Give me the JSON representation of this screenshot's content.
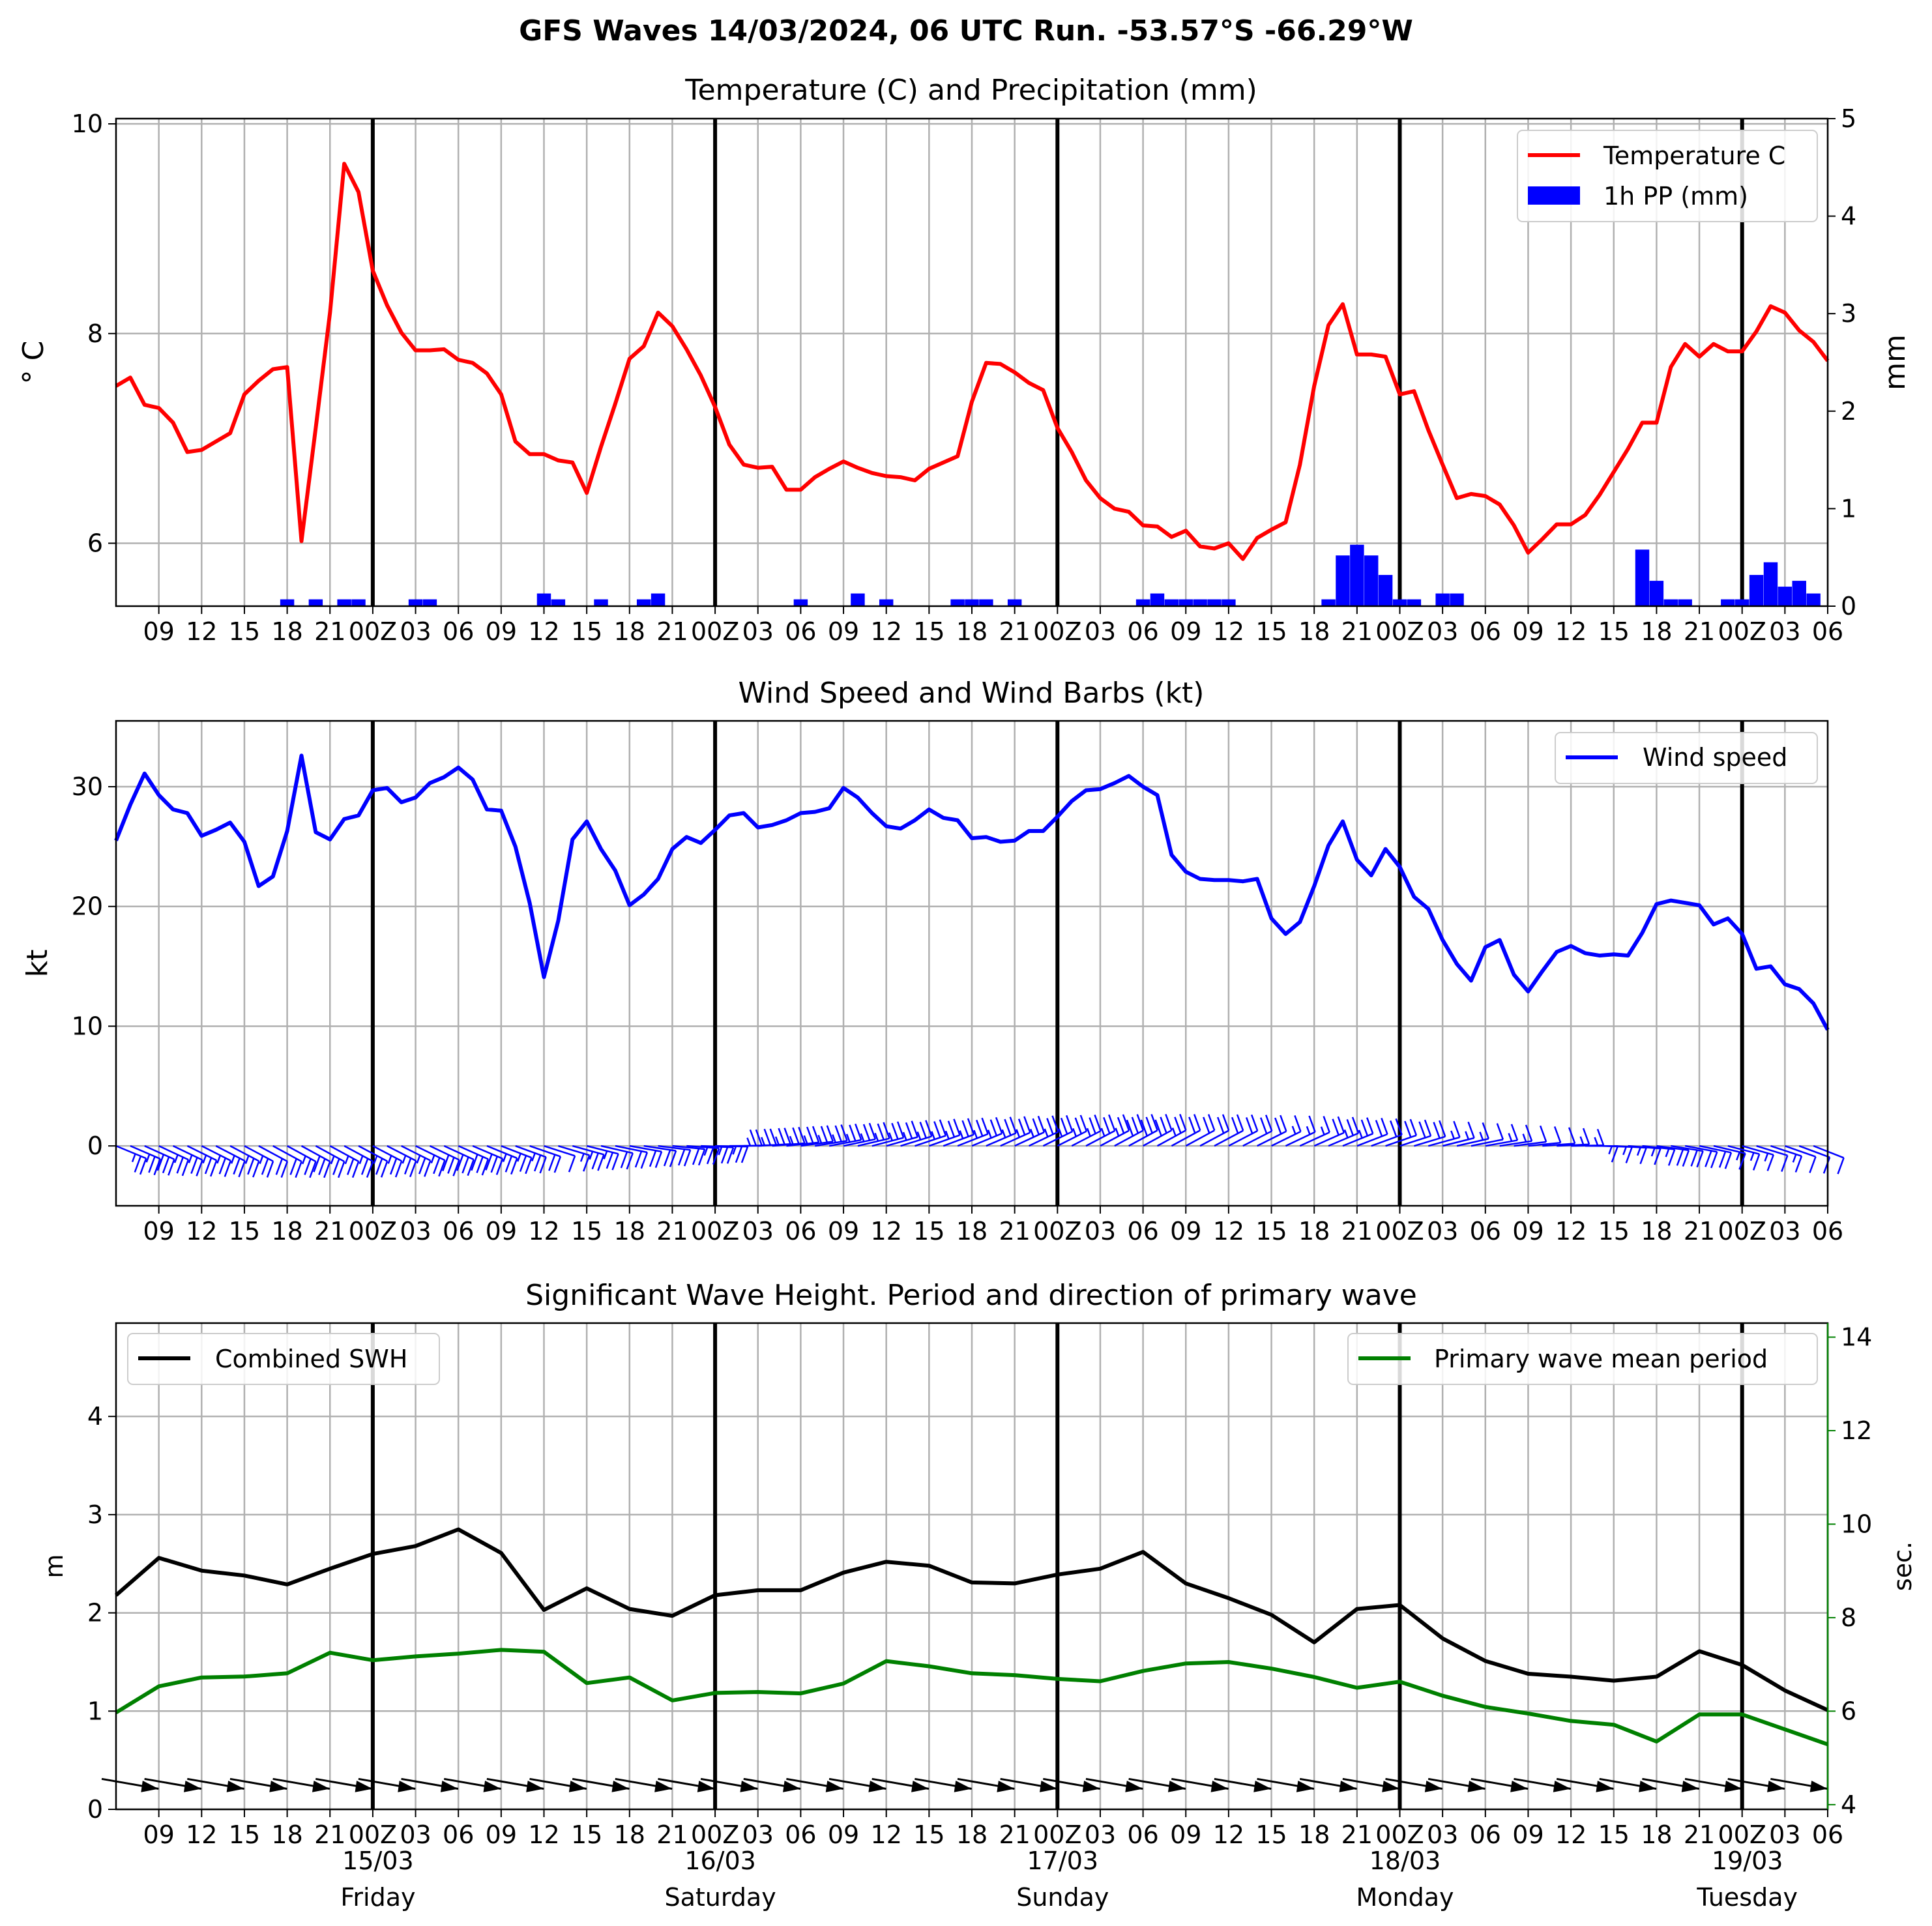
{
  "page": {
    "suptitle": "GFS Waves 14/03/2024, 06 UTC Run. -53.57°S -66.29°W"
  },
  "colors": {
    "temperature": "#ff0000",
    "precip": "#0000ff",
    "wind": "#0000ff",
    "swh": "#000000",
    "period": "#008000",
    "grid": "#b0b0b0",
    "day_line": "#000000"
  },
  "time_axis": {
    "tick_labels": [
      "09",
      "12",
      "15",
      "18",
      "21",
      "00Z",
      "03",
      "06",
      "09",
      "12",
      "15",
      "18",
      "21",
      "00Z",
      "03",
      "06",
      "09",
      "12",
      "15",
      "18",
      "21",
      "00Z",
      "03",
      "06",
      "09",
      "12",
      "15",
      "18",
      "21",
      "00Z",
      "03",
      "06",
      "09",
      "12",
      "15",
      "18",
      "21",
      "00Z",
      "03",
      "06"
    ],
    "day_labels": [
      {
        "date": "15/03",
        "day": "Friday"
      },
      {
        "date": "16/03",
        "day": "Saturday"
      },
      {
        "date": "17/03",
        "day": "Sunday"
      },
      {
        "date": "18/03",
        "day": "Monday"
      },
      {
        "date": "19/03",
        "day": "Tuesday"
      }
    ]
  },
  "chart_data": [
    {
      "type": "line",
      "title": "Temperature (C) and Precipitation (mm)",
      "x_units": "hours since 14/03 06Z",
      "xlim": [
        0,
        120
      ],
      "ylabel": "$^\\circ$C",
      "ylabel_display": "° C",
      "ylim": [
        5.4,
        10.05
      ],
      "yticks": [
        6,
        8,
        10
      ],
      "y2label": "mm",
      "y2lim": [
        0,
        5
      ],
      "y2ticks": [
        0,
        1,
        2,
        3,
        4,
        5
      ],
      "legend": {
        "position": "top-right",
        "entries": [
          "Temperature C",
          "1h PP (mm)"
        ]
      },
      "series": [
        {
          "name": "Temperature C",
          "kind": "line",
          "x": [
            0,
            1,
            2,
            3,
            4,
            5,
            6,
            7,
            8,
            9,
            10,
            11,
            12,
            13,
            14,
            15,
            16,
            17,
            18,
            19,
            20,
            21,
            22,
            23,
            24,
            25,
            26,
            27,
            28,
            29,
            30,
            31,
            32,
            33,
            34,
            35,
            36,
            37,
            38,
            39,
            40,
            41,
            42,
            43,
            44,
            45,
            46,
            47,
            48,
            49,
            50,
            51,
            52,
            53,
            54,
            55,
            56,
            57,
            58,
            59,
            60,
            61,
            62,
            63,
            64,
            65,
            66,
            67,
            68,
            69,
            70,
            71,
            72,
            73,
            74,
            75,
            76,
            77,
            78,
            79,
            80,
            81,
            82,
            83,
            84,
            85,
            86,
            87,
            88,
            89,
            90,
            91,
            92,
            93,
            94,
            95,
            96,
            97,
            98,
            99,
            100,
            101,
            102,
            103,
            104,
            105,
            106,
            107,
            108,
            109,
            110,
            111,
            112,
            113,
            114,
            115,
            116,
            117,
            118,
            119,
            120
          ],
          "values": [
            7.5,
            7.58,
            7.32,
            7.29,
            7.15,
            6.87,
            6.89,
            6.97,
            7.05,
            7.42,
            7.55,
            7.66,
            7.68,
            6.02,
            7.1,
            8.2,
            9.62,
            9.35,
            8.6,
            8.27,
            8.01,
            7.84,
            7.84,
            7.85,
            7.75,
            7.72,
            7.62,
            7.42,
            6.97,
            6.85,
            6.85,
            6.79,
            6.77,
            6.48,
            6.92,
            7.33,
            7.76,
            7.88,
            8.2,
            8.07,
            7.85,
            7.6,
            7.3,
            6.94,
            6.75,
            6.72,
            6.73,
            6.51,
            6.51,
            6.63,
            6.71,
            6.78,
            6.72,
            6.67,
            6.64,
            6.63,
            6.6,
            6.71,
            6.77,
            6.83,
            7.35,
            7.72,
            7.71,
            7.63,
            7.53,
            7.46,
            7.1,
            6.87,
            6.6,
            6.43,
            6.33,
            6.3,
            6.17,
            6.16,
            6.06,
            6.12,
            5.97,
            5.95,
            6.0,
            5.85,
            6.05,
            6.13,
            6.2,
            6.75,
            7.5,
            8.08,
            8.28,
            7.8,
            7.8,
            7.78,
            7.42,
            7.45,
            7.08,
            6.75,
            6.43,
            6.47,
            6.45,
            6.37,
            6.17,
            5.91,
            6.04,
            6.18,
            6.18,
            6.27,
            6.46,
            6.68,
            6.9,
            7.15,
            7.15,
            7.68,
            7.9,
            7.78,
            7.9,
            7.83,
            7.83,
            8.02,
            8.26,
            8.2,
            8.03,
            7.92,
            7.74
          ]
        },
        {
          "name": "1h PP (mm)",
          "kind": "bar",
          "x": [
            12,
            14,
            16,
            17,
            21,
            22,
            30,
            31,
            34,
            37,
            38,
            48,
            52,
            54,
            59,
            60,
            61,
            63,
            72,
            73,
            74,
            75,
            76,
            77,
            78,
            85,
            86,
            87,
            88,
            89,
            90,
            91,
            93,
            94,
            107,
            108,
            109,
            110,
            113,
            114,
            115,
            116,
            117,
            118,
            119
          ],
          "values": [
            0.07,
            0.07,
            0.07,
            0.07,
            0.07,
            0.07,
            0.13,
            0.07,
            0.07,
            0.07,
            0.13,
            0.07,
            0.13,
            0.07,
            0.07,
            0.07,
            0.07,
            0.07,
            0.07,
            0.13,
            0.07,
            0.07,
            0.07,
            0.07,
            0.07,
            0.07,
            0.52,
            0.63,
            0.52,
            0.32,
            0.07,
            0.07,
            0.13,
            0.13,
            0.58,
            0.26,
            0.07,
            0.07,
            0.07,
            0.07,
            0.32,
            0.45,
            0.2,
            0.26,
            0.13
          ]
        }
      ]
    },
    {
      "type": "line",
      "title": "Wind Speed and Wind Barbs (kt)",
      "x_units": "hours since 14/03 06Z",
      "xlim": [
        0,
        120
      ],
      "ylabel": "kt",
      "ylim": [
        -5,
        35.5
      ],
      "yticks": [
        0,
        10,
        20,
        30
      ],
      "legend": {
        "position": "top-right",
        "entries": [
          "Wind speed"
        ]
      },
      "series": [
        {
          "name": "Wind speed",
          "x": [
            0,
            1,
            2,
            3,
            4,
            5,
            6,
            7,
            8,
            9,
            10,
            11,
            12,
            13,
            14,
            15,
            16,
            17,
            18,
            19,
            20,
            21,
            22,
            23,
            24,
            25,
            26,
            27,
            28,
            29,
            30,
            31,
            32,
            33,
            34,
            35,
            36,
            37,
            38,
            39,
            40,
            41,
            42,
            43,
            44,
            45,
            46,
            47,
            48,
            49,
            50,
            51,
            52,
            53,
            54,
            55,
            56,
            57,
            58,
            59,
            60,
            61,
            62,
            63,
            64,
            65,
            66,
            67,
            68,
            69,
            70,
            71,
            72,
            73,
            74,
            75,
            76,
            77,
            78,
            79,
            80,
            81,
            82,
            83,
            84,
            85,
            86,
            87,
            88,
            89,
            90,
            91,
            92,
            93,
            94,
            95,
            96,
            97,
            98,
            99,
            100,
            101,
            102,
            103,
            104,
            105,
            106,
            107,
            108,
            109,
            110,
            111,
            112,
            113,
            114,
            115,
            116,
            117,
            118,
            119,
            120
          ],
          "values": [
            25.5,
            28.5,
            31.1,
            29.3,
            28.1,
            27.8,
            25.9,
            26.4,
            27.0,
            25.4,
            21.7,
            22.5,
            26.3,
            32.6,
            26.2,
            25.6,
            27.3,
            27.6,
            29.7,
            29.9,
            28.7,
            29.1,
            30.3,
            30.8,
            31.6,
            30.6,
            28.1,
            28.0,
            25.0,
            20.3,
            14.1,
            18.8,
            25.6,
            27.1,
            24.8,
            23.0,
            20.1,
            21.0,
            22.3,
            24.8,
            25.8,
            25.3,
            26.4,
            27.6,
            27.8,
            26.6,
            26.8,
            27.2,
            27.8,
            27.9,
            28.2,
            29.9,
            29.1,
            27.8,
            26.7,
            26.5,
            27.2,
            28.1,
            27.4,
            27.2,
            25.7,
            25.8,
            25.4,
            25.5,
            26.3,
            26.3,
            27.5,
            28.8,
            29.7,
            29.8,
            30.3,
            30.9,
            30.0,
            29.3,
            24.3,
            22.9,
            22.3,
            22.2,
            22.2,
            22.1,
            22.3,
            19.0,
            17.7,
            18.7,
            21.7,
            25.1,
            27.1,
            23.9,
            22.6,
            24.8,
            23.3,
            20.8,
            19.8,
            17.2,
            15.2,
            13.8,
            16.6,
            17.2,
            14.3,
            12.9,
            14.6,
            16.2,
            16.7,
            16.1,
            15.9,
            16.0,
            15.9,
            17.8,
            20.2,
            20.5,
            20.3,
            20.1,
            18.5,
            19.0,
            17.7,
            14.8,
            15.0,
            13.5,
            13.1,
            11.9,
            9.7
          ]
        }
      ]
    },
    {
      "type": "line",
      "title": "Significant Wave Height. Period and direction of primary wave",
      "x_units": "hours since 14/03 06Z",
      "xlim": [
        0,
        120
      ],
      "ylabel": "m",
      "ylim": [
        0,
        4.95
      ],
      "yticks": [
        0,
        1,
        2,
        3,
        4
      ],
      "y2label": "sec.",
      "y2lim": [
        3.9,
        14.3
      ],
      "y2ticks": [
        4,
        6,
        8,
        10,
        12,
        14
      ],
      "legend": {
        "position": "top-left and top-right",
        "entries": [
          "Combined SWH",
          "Primary wave mean period"
        ]
      },
      "series": [
        {
          "name": "Combined SWH",
          "axis": "left",
          "x": [
            0,
            3,
            6,
            9,
            12,
            15,
            18,
            21,
            24,
            27,
            30,
            33,
            36,
            39,
            42,
            45,
            48,
            51,
            54,
            57,
            60,
            63,
            66,
            69,
            72,
            75,
            78,
            81,
            84,
            87,
            90,
            93,
            96,
            99,
            102,
            105,
            108,
            111,
            114,
            117,
            120
          ],
          "values": [
            2.18,
            2.56,
            2.43,
            2.38,
            2.29,
            2.45,
            2.6,
            2.68,
            2.85,
            2.61,
            2.03,
            2.25,
            2.04,
            1.97,
            2.18,
            2.23,
            2.23,
            2.41,
            2.52,
            2.48,
            2.31,
            2.3,
            2.39,
            2.45,
            2.62,
            2.3,
            2.15,
            1.98,
            1.7,
            2.04,
            2.08,
            1.74,
            1.51,
            1.38,
            1.35,
            1.31,
            1.35,
            1.61,
            1.47,
            1.21,
            1.01
          ]
        },
        {
          "name": "Primary wave mean period",
          "axis": "right",
          "x": [
            0,
            3,
            6,
            9,
            12,
            15,
            18,
            21,
            24,
            27,
            30,
            33,
            36,
            39,
            42,
            45,
            48,
            51,
            54,
            57,
            60,
            63,
            66,
            69,
            72,
            75,
            78,
            81,
            84,
            87,
            90,
            93,
            96,
            99,
            102,
            105,
            108,
            111,
            114,
            117,
            120
          ],
          "values": [
            5.97,
            6.53,
            6.72,
            6.74,
            6.81,
            7.25,
            7.09,
            7.17,
            7.23,
            7.31,
            7.27,
            6.6,
            6.72,
            6.23,
            6.39,
            6.41,
            6.38,
            6.59,
            7.07,
            6.96,
            6.81,
            6.77,
            6.69,
            6.64,
            6.86,
            7.02,
            7.05,
            6.91,
            6.73,
            6.5,
            6.63,
            6.33,
            6.09,
            5.95,
            5.79,
            5.71,
            5.35,
            5.93,
            5.93,
            5.61,
            5.29
          ]
        }
      ]
    }
  ]
}
